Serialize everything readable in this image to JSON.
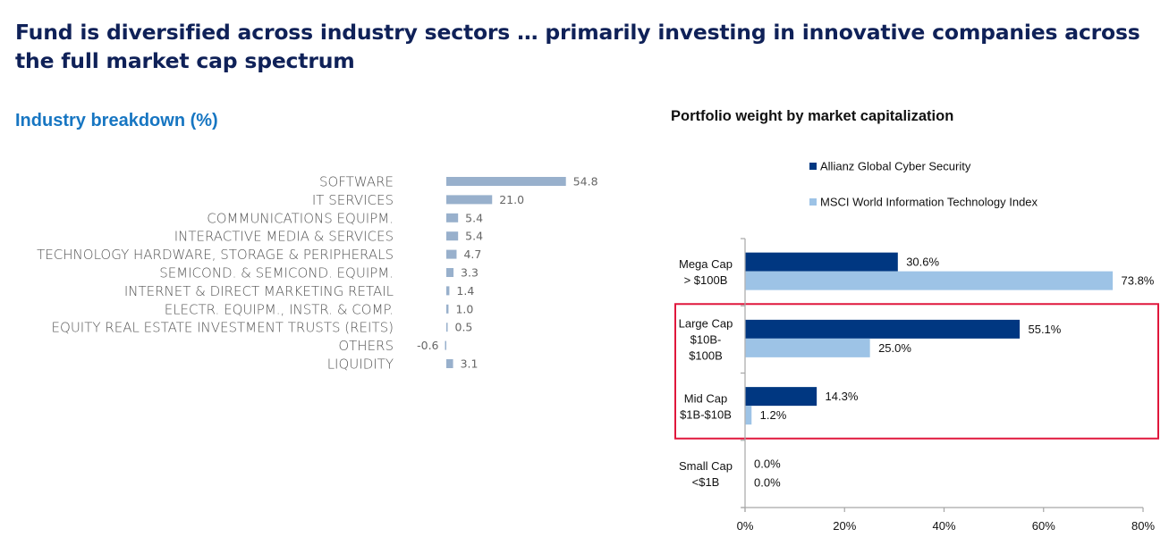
{
  "page": {
    "headline": "Fund is diversified across industry sectors  … primarily investing in innovative companies across the full market cap spectrum"
  },
  "chart_data": [
    {
      "type": "bar",
      "orientation": "horizontal",
      "title": "Industry breakdown (%)",
      "xlabel": "",
      "ylabel": "",
      "grid": false,
      "categories": [
        "SOFTWARE",
        "IT SERVICES",
        "COMMUNICATIONS EQUIPM.",
        "INTERACTIVE MEDIA & SERVICES",
        "TECHNOLOGY HARDWARE, STORAGE & PERIPHERALS",
        "SEMICOND. & SEMICOND. EQUIPM.",
        "INTERNET & DIRECT MARKETING RETAIL",
        "ELECTR. EQUIPM., INSTR. & COMP.",
        "EQUITY REAL ESTATE INVESTMENT TRUSTS (REITS)",
        "OTHERS",
        "LIQUIDITY"
      ],
      "values": [
        54.8,
        21.0,
        5.4,
        5.4,
        4.7,
        3.3,
        1.4,
        1.0,
        0.5,
        -0.6,
        3.1
      ],
      "value_labels": [
        "54.8",
        "21.0",
        "5.4",
        "5.4",
        "4.7",
        "3.3",
        "1.4",
        "1.0",
        "0.5",
        "-0.6",
        "3.1"
      ],
      "colors": {
        "bar": "#98b0cc"
      }
    },
    {
      "type": "bar",
      "orientation": "horizontal",
      "title": "Portfolio weight by market capitalization",
      "xlabel": "",
      "ylabel": "",
      "grid": false,
      "legend_position": "top",
      "categories": [
        [
          "Mega Cap",
          "> $100B"
        ],
        [
          "Large Cap",
          "$10B-",
          "$100B"
        ],
        [
          "Mid Cap",
          "$1B-$10B"
        ],
        [
          "Small Cap",
          "<$1B"
        ]
      ],
      "series": [
        {
          "name": "Allianz Global Cyber Security",
          "color": "#003781",
          "values": [
            30.6,
            55.1,
            14.3,
            0.0
          ],
          "labels": [
            "30.6%",
            "55.1%",
            "14.3%",
            "0.0%"
          ]
        },
        {
          "name": "MSCI World Information Technology Index",
          "color": "#9dc3e6",
          "values": [
            73.8,
            25.0,
            1.2,
            0.0
          ],
          "labels": [
            "73.8%",
            "25.0%",
            "1.2%",
            "0.0%"
          ]
        }
      ],
      "xlim": [
        0,
        80
      ],
      "xticks": [
        "0%",
        "20%",
        "40%",
        "60%",
        "80%"
      ],
      "highlight": {
        "categories": [
          "Large Cap",
          "Mid Cap"
        ],
        "color": "#e0173c"
      }
    }
  ]
}
